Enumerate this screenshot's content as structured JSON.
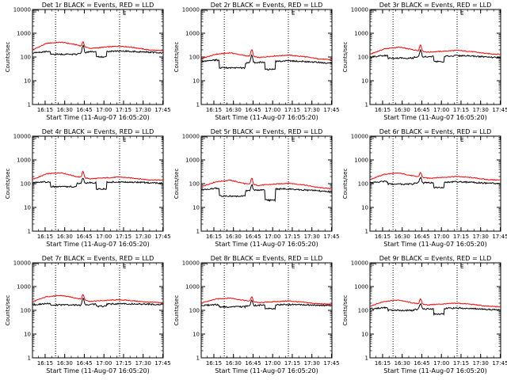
{
  "colors": {
    "events": "#000000",
    "lld": "#ff0000",
    "axis": "#000000",
    "background": "#ffffff"
  },
  "chart_data": [
    {
      "type": "line",
      "title": "Det 1r BLACK = Events, RED = LLD",
      "xlabel": "Start Time (11-Aug-07 16:05:20)",
      "ylabel": "Counts/sec",
      "yscale": "log",
      "ylim": [
        1,
        10000
      ],
      "xlim": [
        "16:05:20",
        "17:45:20"
      ],
      "xticks": [
        "16:15",
        "16:30",
        "16:45",
        "17:00",
        "17:15",
        "17:30",
        "17:45"
      ],
      "yticks": [
        "1",
        "10",
        "100",
        "1000",
        "10000"
      ],
      "vlines": [
        "16:23",
        "17:12"
      ],
      "marker_label": "E",
      "lld_base": [
        200,
        380,
        420,
        330,
        230,
        260,
        290,
        250,
        200,
        180
      ],
      "event_base": [
        150,
        170,
        140,
        130,
        170,
        170,
        180,
        170,
        160,
        150
      ],
      "event_dips": [
        {
          "start": "16:19",
          "end": "16:39",
          "value": 130
        },
        {
          "start": "16:54",
          "end": "17:02",
          "value": 100
        }
      ],
      "spikes": [
        {
          "time": "16:44",
          "lld": 430,
          "events": 310
        }
      ],
      "series": [
        {
          "name": "Events"
        },
        {
          "name": "LLD"
        }
      ]
    },
    {
      "type": "line",
      "title": "Det 2r BLACK = Events, RED = LLD",
      "xlabel": "Start Time (11-Aug-07 16:05:20)",
      "ylabel": "Counts/sec",
      "yscale": "log",
      "ylim": [
        1,
        10000
      ],
      "xlim": [
        "16:05:20",
        "17:45:20"
      ],
      "xticks": [
        "16:15",
        "16:30",
        "16:45",
        "17:00",
        "17:15",
        "17:30",
        "17:45"
      ],
      "yticks": [
        "1",
        "10",
        "100",
        "1000",
        "10000"
      ],
      "vlines": [
        "16:23",
        "17:12"
      ],
      "marker_label": "E",
      "lld_base": [
        85,
        130,
        150,
        115,
        95,
        110,
        120,
        105,
        85,
        75
      ],
      "event_base": [
        65,
        75,
        65,
        55,
        60,
        65,
        70,
        65,
        60,
        55
      ],
      "event_dips": [
        {
          "start": "16:19",
          "end": "16:39",
          "value": 35
        },
        {
          "start": "16:54",
          "end": "17:02",
          "value": 30
        }
      ],
      "spikes": [
        {
          "time": "16:44",
          "lld": 210,
          "events": 120
        }
      ],
      "series": [
        {
          "name": "Events"
        },
        {
          "name": "LLD"
        }
      ]
    },
    {
      "type": "line",
      "title": "Det 3r BLACK = Events, RED = LLD",
      "xlabel": "Start Time (11-Aug-07 16:05:20)",
      "ylabel": "Counts/sec",
      "yscale": "log",
      "ylim": [
        1,
        10000
      ],
      "xlim": [
        "16:05:20",
        "17:45:20"
      ],
      "xticks": [
        "16:15",
        "16:30",
        "16:45",
        "17:00",
        "17:15",
        "17:30",
        "17:45"
      ],
      "yticks": [
        "1",
        "10",
        "100",
        "1000",
        "10000"
      ],
      "vlines": [
        "16:23",
        "17:12"
      ],
      "marker_label": "E",
      "lld_base": [
        130,
        220,
        260,
        200,
        160,
        175,
        190,
        170,
        140,
        130
      ],
      "event_base": [
        100,
        115,
        110,
        100,
        105,
        110,
        115,
        110,
        100,
        95
      ],
      "event_dips": [
        {
          "start": "16:19",
          "end": "16:39",
          "value": 90
        },
        {
          "start": "16:54",
          "end": "17:02",
          "value": 65
        }
      ],
      "spikes": [
        {
          "time": "16:44",
          "lld": 330,
          "events": 200
        }
      ],
      "series": [
        {
          "name": "Events"
        },
        {
          "name": "LLD"
        }
      ]
    },
    {
      "type": "line",
      "title": "Det 4r BLACK = Events, RED = LLD",
      "xlabel": "Start Time (11-Aug-07 16:05:20)",
      "ylabel": "Counts/sec",
      "yscale": "log",
      "ylim": [
        1,
        10000
      ],
      "xlim": [
        "16:05:20",
        "17:45:20"
      ],
      "xticks": [
        "16:15",
        "16:30",
        "16:45",
        "17:00",
        "17:15",
        "17:30",
        "17:45"
      ],
      "yticks": [
        "1",
        "10",
        "100",
        "1000",
        "10000"
      ],
      "vlines": [
        "16:23",
        "17:12"
      ],
      "marker_label": "E",
      "lld_base": [
        150,
        260,
        290,
        200,
        160,
        175,
        190,
        170,
        145,
        140
      ],
      "event_base": [
        110,
        120,
        110,
        100,
        110,
        115,
        120,
        115,
        110,
        105
      ],
      "event_dips": [
        {
          "start": "16:19",
          "end": "16:39",
          "value": 75
        },
        {
          "start": "16:54",
          "end": "17:02",
          "value": 60
        }
      ],
      "spikes": [
        {
          "time": "16:44",
          "lld": 330,
          "events": 180
        }
      ],
      "series": [
        {
          "name": "Events"
        },
        {
          "name": "LLD"
        }
      ]
    },
    {
      "type": "line",
      "title": "Det 5r BLACK = Events, RED = LLD",
      "xlabel": "Start Time (11-Aug-07 16:05:20)",
      "ylabel": "Counts/sec",
      "yscale": "log",
      "ylim": [
        1,
        10000
      ],
      "xlim": [
        "16:05:20",
        "17:45:20"
      ],
      "xticks": [
        "16:15",
        "16:30",
        "16:45",
        "17:00",
        "17:15",
        "17:30",
        "17:45"
      ],
      "yticks": [
        "1",
        "10",
        "100",
        "1000",
        "10000"
      ],
      "vlines": [
        "16:23",
        "17:12"
      ],
      "marker_label": "E",
      "lld_base": [
        75,
        120,
        140,
        100,
        85,
        95,
        105,
        90,
        70,
        60
      ],
      "event_base": [
        55,
        65,
        60,
        50,
        55,
        60,
        60,
        55,
        50,
        45
      ],
      "event_dips": [
        {
          "start": "16:19",
          "end": "16:39",
          "value": 30
        },
        {
          "start": "16:54",
          "end": "17:02",
          "value": 20
        }
      ],
      "spikes": [
        {
          "time": "16:44",
          "lld": 170,
          "events": 90
        }
      ],
      "series": [
        {
          "name": "Events"
        },
        {
          "name": "LLD"
        }
      ]
    },
    {
      "type": "line",
      "title": "Det 6r BLACK = Events, RED = LLD",
      "xlabel": "Start Time (11-Aug-07 16:05:20)",
      "ylabel": "Counts/sec",
      "yscale": "log",
      "ylim": [
        1,
        10000
      ],
      "xlim": [
        "16:05:20",
        "17:45:20"
      ],
      "xticks": [
        "16:15",
        "16:30",
        "16:45",
        "17:00",
        "17:15",
        "17:30",
        "17:45"
      ],
      "yticks": [
        "1",
        "10",
        "100",
        "1000",
        "10000"
      ],
      "vlines": [
        "16:23",
        "17:12"
      ],
      "marker_label": "E",
      "lld_base": [
        150,
        250,
        280,
        210,
        170,
        185,
        200,
        180,
        150,
        140
      ],
      "event_base": [
        110,
        125,
        115,
        105,
        110,
        115,
        120,
        115,
        105,
        100
      ],
      "event_dips": [
        {
          "start": "16:19",
          "end": "16:39",
          "value": 95
        },
        {
          "start": "16:54",
          "end": "17:02",
          "value": 70
        }
      ],
      "spikes": [
        {
          "time": "16:44",
          "lld": 300,
          "events": 180
        }
      ],
      "series": [
        {
          "name": "Events"
        },
        {
          "name": "LLD"
        }
      ]
    },
    {
      "type": "line",
      "title": "Det 7r BLACK = Events, RED = LLD",
      "xlabel": "Start Time (11-Aug-07 16:05:20)",
      "ylabel": "Counts/sec",
      "yscale": "log",
      "ylim": [
        1,
        10000
      ],
      "xlim": [
        "16:05:20",
        "17:45:20"
      ],
      "xticks": [
        "16:15",
        "16:30",
        "16:45",
        "17:00",
        "17:15",
        "17:30",
        "17:45"
      ],
      "yticks": [
        "1",
        "10",
        "100",
        "1000",
        "10000"
      ],
      "vlines": [
        "16:23",
        "17:12"
      ],
      "marker_label": "E",
      "lld_base": [
        230,
        380,
        420,
        330,
        240,
        260,
        280,
        250,
        220,
        210
      ],
      "event_base": [
        170,
        190,
        170,
        160,
        180,
        185,
        190,
        185,
        180,
        175
      ],
      "event_dips": [
        {
          "start": "16:19",
          "end": "16:39",
          "value": 170
        },
        {
          "start": "16:54",
          "end": "17:02",
          "value": 150
        }
      ],
      "spikes": [
        {
          "time": "16:44",
          "lld": 470,
          "events": 330
        }
      ],
      "series": [
        {
          "name": "Events"
        },
        {
          "name": "LLD"
        }
      ]
    },
    {
      "type": "line",
      "title": "Det 8r BLACK = Events, RED = LLD",
      "xlabel": "Start Time (11-Aug-07 16:05:20)",
      "ylabel": "Counts/sec",
      "yscale": "log",
      "ylim": [
        1,
        10000
      ],
      "xlim": [
        "16:05:20",
        "17:45:20"
      ],
      "xticks": [
        "16:15",
        "16:30",
        "16:45",
        "17:00",
        "17:15",
        "17:30",
        "17:45"
      ],
      "yticks": [
        "1",
        "10",
        "100",
        "1000",
        "10000"
      ],
      "vlines": [
        "16:23",
        "17:12"
      ],
      "marker_label": "E",
      "lld_base": [
        200,
        300,
        330,
        260,
        210,
        230,
        250,
        220,
        190,
        180
      ],
      "event_base": [
        160,
        175,
        165,
        150,
        165,
        170,
        175,
        170,
        165,
        160
      ],
      "event_dips": [
        {
          "start": "16:19",
          "end": "16:39",
          "value": 140
        },
        {
          "start": "16:54",
          "end": "17:02",
          "value": 120
        }
      ],
      "spikes": [
        {
          "time": "16:44",
          "lld": 380,
          "events": 260
        }
      ],
      "series": [
        {
          "name": "Events"
        },
        {
          "name": "LLD"
        }
      ]
    },
    {
      "type": "line",
      "title": "Det 9r BLACK = Events, RED = LLD",
      "xlabel": "Start Time (11-Aug-07 16:05:20)",
      "ylabel": "Counts/sec",
      "yscale": "log",
      "ylim": [
        1,
        10000
      ],
      "xlim": [
        "16:05:20",
        "17:45:20"
      ],
      "xticks": [
        "16:15",
        "16:30",
        "16:45",
        "17:00",
        "17:15",
        "17:30",
        "17:45"
      ],
      "yticks": [
        "1",
        "10",
        "100",
        "1000",
        "10000"
      ],
      "vlines": [
        "16:23",
        "17:12"
      ],
      "marker_label": "E",
      "lld_base": [
        150,
        240,
        270,
        200,
        170,
        185,
        200,
        180,
        150,
        140
      ],
      "event_base": [
        115,
        130,
        120,
        110,
        115,
        120,
        125,
        120,
        110,
        105
      ],
      "event_dips": [
        {
          "start": "16:19",
          "end": "16:39",
          "value": 100
        },
        {
          "start": "16:54",
          "end": "17:02",
          "value": 70
        }
      ],
      "spikes": [
        {
          "time": "16:44",
          "lld": 310,
          "events": 190
        }
      ],
      "series": [
        {
          "name": "Events"
        },
        {
          "name": "LLD"
        }
      ]
    }
  ]
}
